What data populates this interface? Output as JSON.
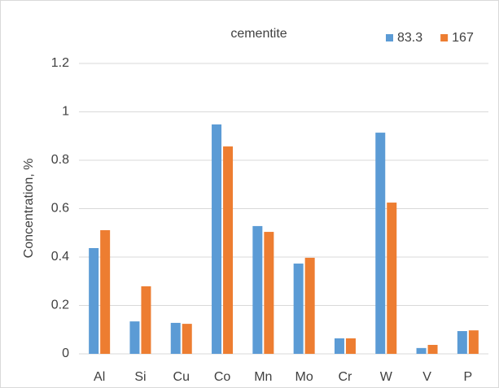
{
  "chart_data": {
    "type": "bar",
    "title": "cementite",
    "y_label": "Concentration, %",
    "categories": [
      "Al",
      "Si",
      "Cu",
      "Co",
      "Mn",
      "Mo",
      "Cr",
      "W",
      "V",
      "P"
    ],
    "series": [
      {
        "name": "83.3",
        "color": "#5b9bd5",
        "values": [
          0.437,
          0.134,
          0.128,
          0.948,
          0.528,
          0.373,
          0.064,
          0.914,
          0.024,
          0.094
        ]
      },
      {
        "name": "167",
        "color": "#ed7d31",
        "values": [
          0.511,
          0.279,
          0.124,
          0.857,
          0.504,
          0.397,
          0.064,
          0.625,
          0.037,
          0.097
        ]
      }
    ],
    "ylim": [
      0,
      1.2
    ],
    "yticks": [
      0,
      0.2,
      0.4,
      0.6,
      0.8,
      1,
      1.2
    ],
    "grid": true,
    "legend": "top-right"
  }
}
